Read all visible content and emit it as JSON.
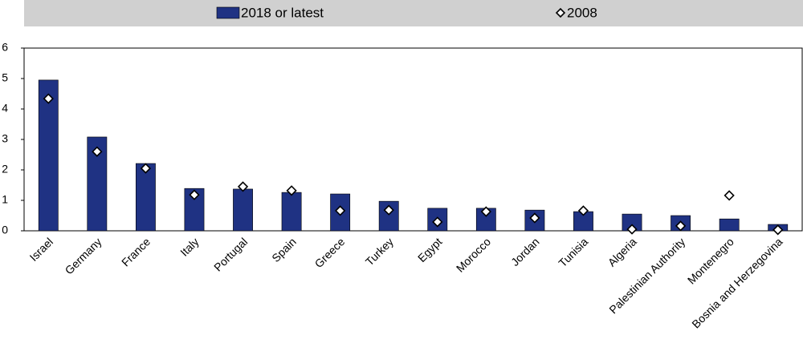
{
  "chart_data": {
    "type": "bar",
    "categories": [
      "Israel",
      "Germany",
      "France",
      "Italy",
      "Portugal",
      "Spain",
      "Greece",
      "Turkey",
      "Egypt",
      "Morocco",
      "Jordan",
      "Tunisia",
      "Algeria",
      "Palestinian Authority",
      "Montenegro",
      "Bosnia and Herzegovina"
    ],
    "series": [
      {
        "name": "2018 or latest",
        "color": "#1f3283",
        "marker": "bar",
        "values": [
          4.95,
          3.08,
          2.21,
          1.39,
          1.37,
          1.26,
          1.21,
          0.97,
          0.74,
          0.74,
          0.68,
          0.63,
          0.55,
          0.5,
          0.39,
          0.21
        ]
      },
      {
        "name": "2008",
        "color": "#ffffff",
        "marker": "diamond",
        "values": [
          4.34,
          2.6,
          2.05,
          1.18,
          1.45,
          1.32,
          0.66,
          0.68,
          0.29,
          0.63,
          0.42,
          0.66,
          0.05,
          0.16,
          1.16,
          0.03
        ]
      }
    ],
    "ylim": [
      0,
      6
    ],
    "yticks": [
      0,
      1,
      2,
      3,
      4,
      5,
      6
    ],
    "grid": false,
    "legend": "top"
  }
}
